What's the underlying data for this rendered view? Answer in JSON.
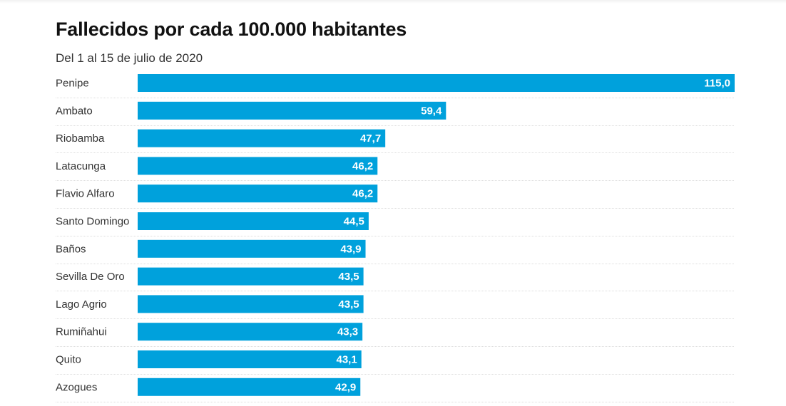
{
  "colors": {
    "bar": "#00a1dc",
    "value_text": "#ffffff",
    "category_text": "#333333",
    "separator": "#dddddd"
  },
  "chart_data": {
    "type": "bar",
    "orientation": "horizontal",
    "title": "Fallecidos por cada 100.000 habitantes",
    "subtitle": "Del 1 al 15 de julio de 2020",
    "categories": [
      "Penipe",
      "Ambato",
      "Riobamba",
      "Latacunga",
      "Flavio Alfaro",
      "Santo Domingo",
      "Baños",
      "Sevilla De Oro",
      "Lago Agrio",
      "Rumiñahui",
      "Quito",
      "Azogues"
    ],
    "values": [
      115.0,
      59.4,
      47.7,
      46.2,
      46.2,
      44.5,
      43.9,
      43.5,
      43.5,
      43.3,
      43.1,
      42.9
    ],
    "value_labels": [
      "115,0",
      "59,4",
      "47,7",
      "46,2",
      "46,2",
      "44,5",
      "43,9",
      "43,5",
      "43,5",
      "43,3",
      "43,1",
      "42,9"
    ],
    "xlim": [
      0,
      115
    ],
    "grid": false,
    "legend": "none"
  }
}
